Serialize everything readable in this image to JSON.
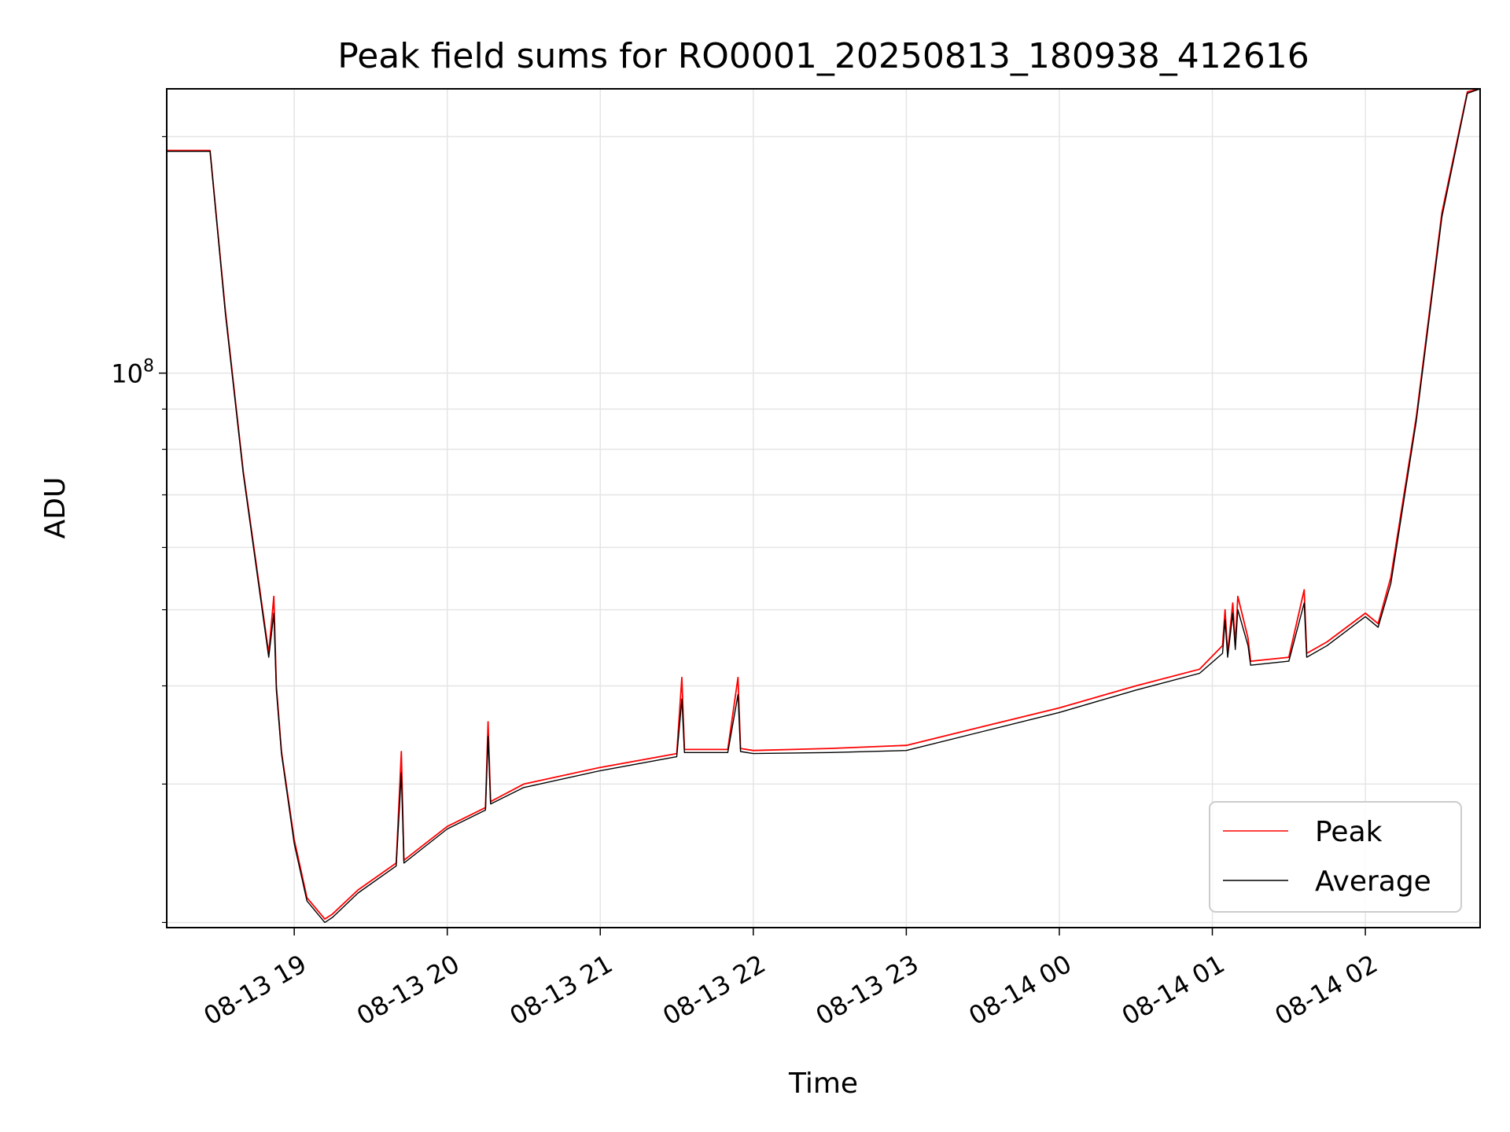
{
  "chart_data": {
    "type": "line",
    "title": "Peak field sums for RO0001_20250813_180938_412616",
    "xlabel": "Time",
    "ylabel": "ADU",
    "yscale": "log",
    "xlim": [
      "2025-08-13 18:10",
      "2025-08-14 02:45"
    ],
    "ylim": [
      19700000,
      230000000
    ],
    "x_ticks": [
      "08-13 19",
      "08-13 20",
      "08-13 21",
      "08-13 22",
      "08-13 23",
      "08-14 00",
      "08-14 01",
      "08-14 02"
    ],
    "y_major_ticks": [
      {
        "value": 100000000,
        "base": "10",
        "exp": "8"
      }
    ],
    "y_minor_ticks": [
      20000000,
      30000000,
      40000000,
      50000000,
      60000000,
      70000000,
      80000000,
      90000000,
      200000000
    ],
    "grid": true,
    "legend_position": "lower right",
    "series": [
      {
        "name": "Peak",
        "color": "#ff0000",
        "x": [
          "2025-08-13 18:10",
          "2025-08-13 18:27",
          "2025-08-13 18:33",
          "2025-08-13 18:40",
          "2025-08-13 18:50",
          "2025-08-13 18:52",
          "2025-08-13 18:53",
          "2025-08-13 18:55",
          "2025-08-13 19:00",
          "2025-08-13 19:05",
          "2025-08-13 19:12",
          "2025-08-13 19:15",
          "2025-08-13 19:25",
          "2025-08-13 19:40",
          "2025-08-13 19:42",
          "2025-08-13 19:43",
          "2025-08-13 19:50",
          "2025-08-13 20:00",
          "2025-08-13 20:15",
          "2025-08-13 20:16",
          "2025-08-13 20:17",
          "2025-08-13 20:30",
          "2025-08-13 21:00",
          "2025-08-13 21:30",
          "2025-08-13 21:32",
          "2025-08-13 21:33",
          "2025-08-13 21:50",
          "2025-08-13 21:54",
          "2025-08-13 21:55",
          "2025-08-13 22:00",
          "2025-08-13 22:30",
          "2025-08-13 23:00",
          "2025-08-13 23:30",
          "2025-08-14 00:00",
          "2025-08-14 00:30",
          "2025-08-14 00:55",
          "2025-08-14 01:04",
          "2025-08-14 01:05",
          "2025-08-14 01:06",
          "2025-08-14 01:08",
          "2025-08-14 01:09",
          "2025-08-14 01:10",
          "2025-08-14 01:14",
          "2025-08-14 01:15",
          "2025-08-14 01:30",
          "2025-08-14 01:36",
          "2025-08-14 01:37",
          "2025-08-14 01:45",
          "2025-08-14 02:00",
          "2025-08-14 02:05",
          "2025-08-14 02:10",
          "2025-08-14 02:20",
          "2025-08-14 02:30",
          "2025-08-14 02:40",
          "2025-08-14 02:45"
        ],
        "y": [
          192000000,
          192000000,
          120000000,
          75000000,
          44000000,
          52000000,
          40000000,
          33000000,
          25500000,
          21500000,
          20200000,
          20500000,
          22000000,
          23800000,
          33000000,
          24000000,
          25000000,
          26500000,
          28000000,
          36000000,
          28500000,
          30000000,
          31500000,
          32800000,
          41000000,
          33200000,
          33200000,
          41000000,
          33300000,
          33100000,
          33300000,
          33600000,
          35500000,
          37500000,
          40000000,
          42000000,
          45000000,
          50000000,
          44000000,
          51000000,
          45000000,
          52000000,
          46000000,
          43000000,
          43500000,
          53000000,
          44000000,
          45500000,
          49500000,
          48000000,
          55000000,
          88000000,
          160000000,
          228000000,
          230000000
        ]
      },
      {
        "name": "Average",
        "color": "#000000",
        "x": [
          "2025-08-13 18:10",
          "2025-08-13 18:27",
          "2025-08-13 18:33",
          "2025-08-13 18:40",
          "2025-08-13 18:50",
          "2025-08-13 18:52",
          "2025-08-13 18:53",
          "2025-08-13 18:55",
          "2025-08-13 19:00",
          "2025-08-13 19:05",
          "2025-08-13 19:12",
          "2025-08-13 19:15",
          "2025-08-13 19:25",
          "2025-08-13 19:40",
          "2025-08-13 19:42",
          "2025-08-13 19:43",
          "2025-08-13 19:50",
          "2025-08-13 20:00",
          "2025-08-13 20:15",
          "2025-08-13 20:16",
          "2025-08-13 20:17",
          "2025-08-13 20:30",
          "2025-08-13 21:00",
          "2025-08-13 21:30",
          "2025-08-13 21:32",
          "2025-08-13 21:33",
          "2025-08-13 21:50",
          "2025-08-13 21:54",
          "2025-08-13 21:55",
          "2025-08-13 22:00",
          "2025-08-13 22:30",
          "2025-08-13 23:00",
          "2025-08-13 23:30",
          "2025-08-14 00:00",
          "2025-08-14 00:30",
          "2025-08-14 00:55",
          "2025-08-14 01:04",
          "2025-08-14 01:05",
          "2025-08-14 01:06",
          "2025-08-14 01:08",
          "2025-08-14 01:09",
          "2025-08-14 01:10",
          "2025-08-14 01:14",
          "2025-08-14 01:15",
          "2025-08-14 01:30",
          "2025-08-14 01:36",
          "2025-08-14 01:37",
          "2025-08-14 01:45",
          "2025-08-14 02:00",
          "2025-08-14 02:05",
          "2025-08-14 02:10",
          "2025-08-14 02:20",
          "2025-08-14 02:30",
          "2025-08-14 02:40",
          "2025-08-14 02:45"
        ],
        "y": [
          191500000,
          191500000,
          119000000,
          74500000,
          43500000,
          49500000,
          39500000,
          32800000,
          25200000,
          21300000,
          20000000,
          20300000,
          21800000,
          23600000,
          31000000,
          23800000,
          24800000,
          26300000,
          27800000,
          34500000,
          28300000,
          29700000,
          31200000,
          32500000,
          38500000,
          32900000,
          32900000,
          39000000,
          33000000,
          32800000,
          32900000,
          33100000,
          35000000,
          37000000,
          39500000,
          41500000,
          44000000,
          48500000,
          43500000,
          49500000,
          44500000,
          50000000,
          45000000,
          42500000,
          43000000,
          51000000,
          43500000,
          45000000,
          49000000,
          47500000,
          54000000,
          87000000,
          158000000,
          227000000,
          230000000
        ]
      }
    ]
  }
}
